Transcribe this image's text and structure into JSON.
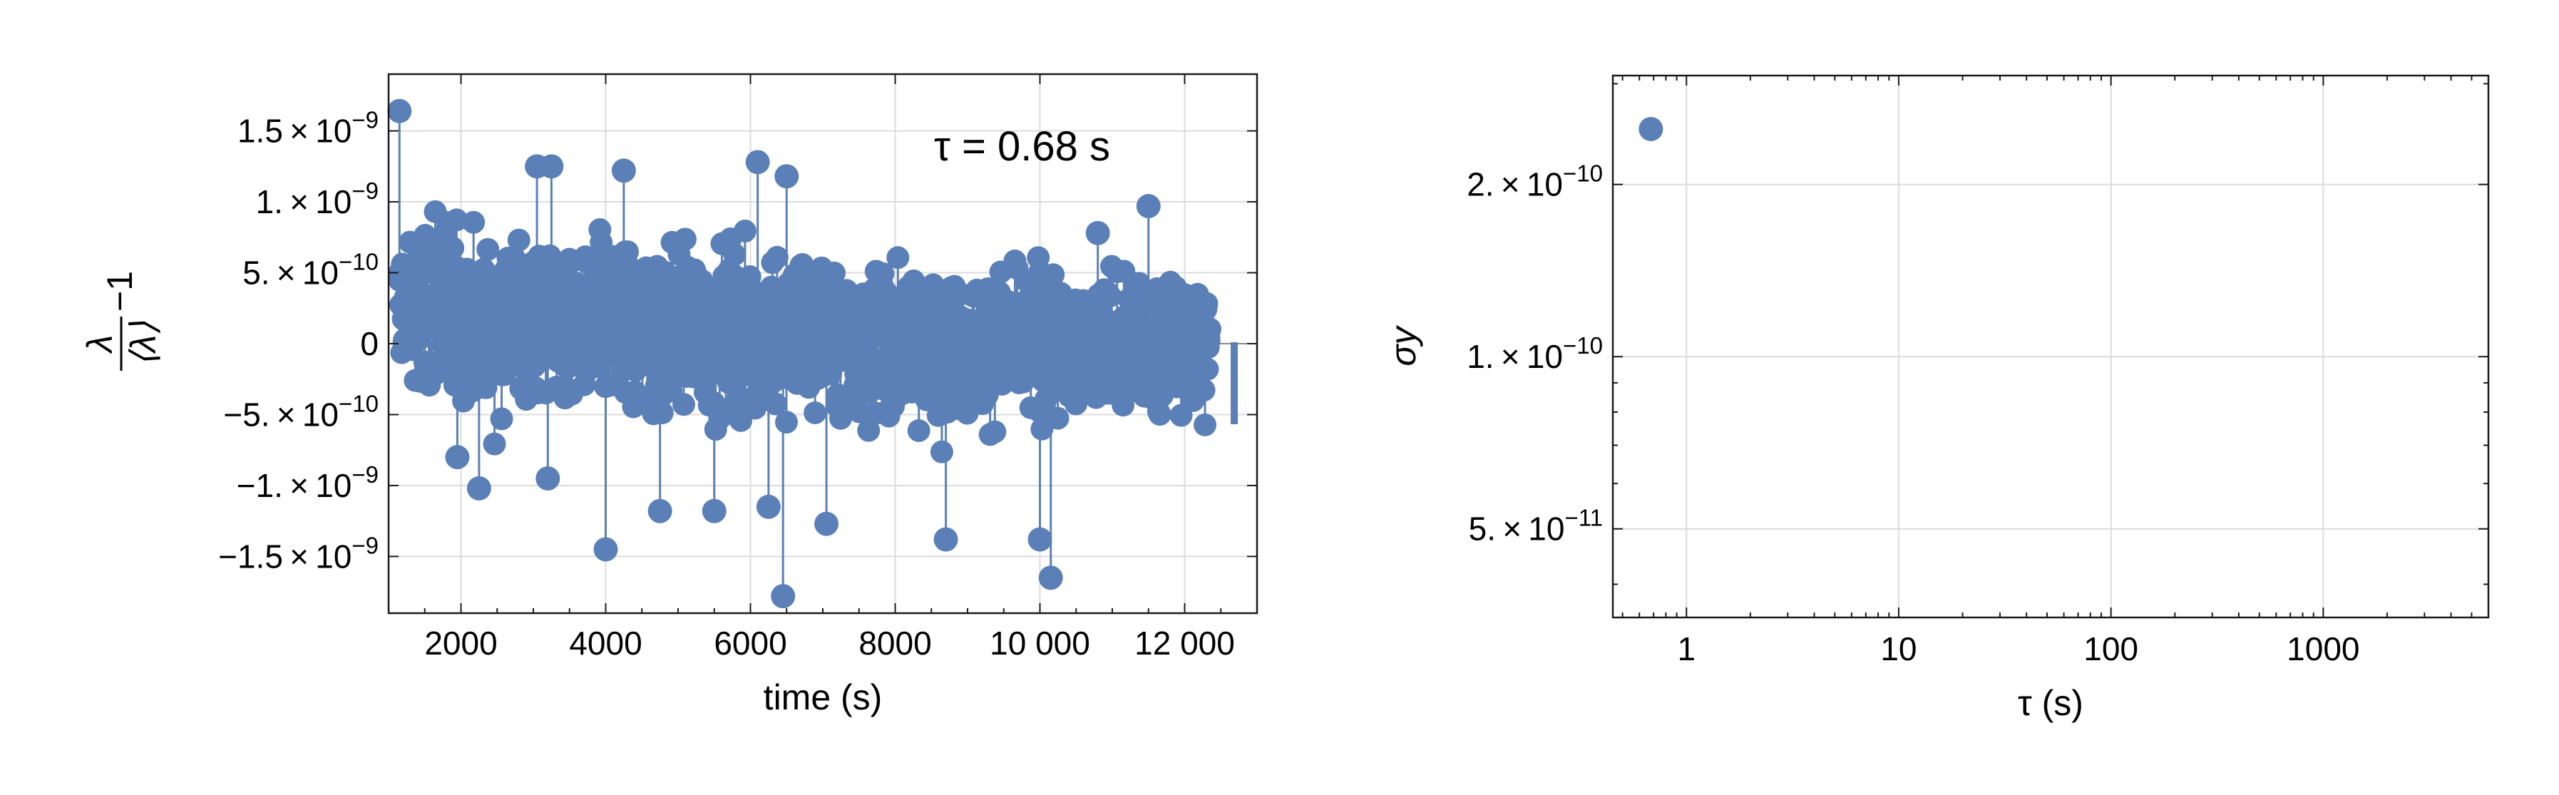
{
  "chart_data": [
    {
      "type": "scatter",
      "style": "stem plot, filled circular markers",
      "title": "",
      "xlabel": "time (s)",
      "ylabel": {
        "numerator": "λ",
        "denominator": "⟨λ⟩",
        "suffix": "−1"
      },
      "annotation": "τ = 0.68 s",
      "xlim": [
        1000,
        13000
      ],
      "ylim": [
        -1.9e-09,
        1.9e-09
      ],
      "grid": true,
      "x_ticks": [
        {
          "value": 2000,
          "label": "2000"
        },
        {
          "value": 4000,
          "label": "4000"
        },
        {
          "value": 6000,
          "label": "6000"
        },
        {
          "value": 8000,
          "label": "8000"
        },
        {
          "value": 10000,
          "label": "10 000"
        },
        {
          "value": 12000,
          "label": "12 000"
        }
      ],
      "y_ticks": [
        {
          "value": 1.5e-09,
          "mant": "1.5",
          "exp": "−9"
        },
        {
          "value": 1e-09,
          "mant": "1.",
          "exp": "−9"
        },
        {
          "value": 5e-10,
          "mant": "5.",
          "exp": "−10"
        },
        {
          "value": 0,
          "mant": "0",
          "exp": ""
        },
        {
          "value": -5e-10,
          "mant": "−5.",
          "exp": "−10"
        },
        {
          "value": -1e-09,
          "mant": "−1.",
          "exp": "−9"
        },
        {
          "value": -1.5e-09,
          "mant": "−1.5",
          "exp": "−9"
        }
      ],
      "x_range_of_data": [
        1150,
        12350
      ],
      "envelope_note": "dense cloud of roughly 16 000 points between about ±1e-9, tapering toward later times",
      "outliers": [
        {
          "x": 1150,
          "y": 1.64e-09
        },
        {
          "x": 1950,
          "y": -8e-10
        },
        {
          "x": 2250,
          "y": -1.02e-09
        },
        {
          "x": 2900,
          "y": -3.5e-10
        },
        {
          "x": 3050,
          "y": 1.25e-09
        },
        {
          "x": 3200,
          "y": -9.5e-10
        },
        {
          "x": 3250,
          "y": 1.25e-09
        },
        {
          "x": 4000,
          "y": -1.45e-09
        },
        {
          "x": 4250,
          "y": 1.22e-09
        },
        {
          "x": 4750,
          "y": -1.18e-09
        },
        {
          "x": 5500,
          "y": -1.18e-09
        },
        {
          "x": 6100,
          "y": 1.28e-09
        },
        {
          "x": 6250,
          "y": -1.15e-09
        },
        {
          "x": 6450,
          "y": -1.78e-09
        },
        {
          "x": 6500,
          "y": 1.18e-09
        },
        {
          "x": 7050,
          "y": -1.27e-09
        },
        {
          "x": 8700,
          "y": -1.38e-09
        },
        {
          "x": 10000,
          "y": -1.38e-09
        },
        {
          "x": 10150,
          "y": -1.65e-09
        },
        {
          "x": 10800,
          "y": 7.8e-10
        },
        {
          "x": 11500,
          "y": 9.7e-10
        }
      ],
      "color": "#5b80b7"
    },
    {
      "type": "scatter",
      "title": "",
      "xlabel": "τ (s)",
      "ylabel": "σy",
      "log_x": true,
      "log_y": true,
      "xlim": [
        0.45,
        6000
      ],
      "ylim": [
        3.5e-11,
        3.1e-10
      ],
      "grid": true,
      "x_ticks": [
        {
          "value": 1,
          "label": "1"
        },
        {
          "value": 10,
          "label": "10"
        },
        {
          "value": 100,
          "label": "100"
        },
        {
          "value": 1000,
          "label": "1000"
        }
      ],
      "y_ticks": [
        {
          "value": 2e-10,
          "mant": "2.",
          "exp": "−10"
        },
        {
          "value": 1e-10,
          "mant": "1.",
          "exp": "−10"
        },
        {
          "value": 5e-11,
          "mant": "5.",
          "exp": "−11"
        }
      ],
      "points": [
        {
          "x": 0.68,
          "y": 2.5e-10
        }
      ],
      "color": "#5b80b7"
    }
  ]
}
